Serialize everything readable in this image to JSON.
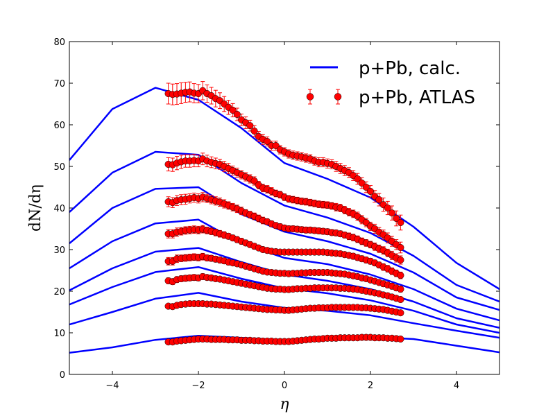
{
  "chart_data": {
    "type": "line",
    "xlabel": "η",
    "ylabel": "dN/dη",
    "xlim": [
      -5,
      5
    ],
    "ylim": [
      0,
      80
    ],
    "xticks": [
      -4,
      -2,
      0,
      2,
      4
    ],
    "xtick_labels": [
      "−4",
      "−2",
      "0",
      "2",
      "4"
    ],
    "yticks": [
      0,
      10,
      20,
      30,
      40,
      50,
      60,
      70,
      80
    ],
    "yticks_labels": [
      "0",
      "10",
      "20",
      "30",
      "40",
      "50",
      "60",
      "70",
      "80"
    ],
    "legend": {
      "position": "top-right",
      "entries": [
        {
          "label": "p+Pb, calc.",
          "kind": "line",
          "color": "#0000ff"
        },
        {
          "label": "p+Pb, ATLAS",
          "kind": "marker",
          "color": "#ff0000"
        }
      ]
    },
    "colors": {
      "line": "#0000ff",
      "marker_fill": "#ff0000",
      "errorbar": "#ff0000"
    },
    "calc_x": [
      -5,
      -4,
      -3,
      -2,
      -1,
      0,
      1,
      2,
      3,
      4,
      5
    ],
    "calc_series": [
      [
        51.5,
        63.8,
        68.9,
        66.0,
        59.2,
        50.8,
        47.0,
        42.5,
        35.5,
        26.8,
        20.5
      ],
      [
        39.0,
        48.5,
        53.5,
        52.8,
        46.0,
        40.6,
        37.7,
        34.0,
        28.5,
        21.5,
        17.5
      ],
      [
        31.5,
        40.0,
        44.6,
        45.0,
        38.5,
        34.3,
        32.0,
        29.0,
        24.5,
        18.5,
        15.5
      ],
      [
        25.5,
        32.0,
        36.3,
        37.2,
        31.5,
        28.0,
        26.5,
        24.0,
        20.5,
        15.8,
        13.0
      ],
      [
        20.2,
        25.5,
        29.5,
        30.4,
        27.0,
        24.0,
        22.5,
        20.5,
        17.5,
        13.5,
        11.2
      ],
      [
        16.8,
        21.0,
        24.6,
        25.8,
        23.0,
        20.7,
        19.5,
        17.8,
        15.3,
        12.0,
        10.0
      ],
      [
        12.0,
        15.0,
        18.2,
        19.6,
        17.5,
        16.0,
        15.3,
        14.2,
        12.3,
        10.5,
        8.8
      ],
      [
        5.2,
        6.5,
        8.3,
        9.3,
        8.8,
        8.2,
        8.6,
        9.0,
        8.5,
        6.9,
        5.3
      ]
    ],
    "data_x": [
      -2.7,
      -2.6,
      -2.5,
      -2.4,
      -2.3,
      -2.2,
      -2.1,
      -2.0,
      -1.9,
      -1.8,
      -1.7,
      -1.6,
      -1.5,
      -1.4,
      -1.3,
      -1.2,
      -1.1,
      -1.0,
      -0.9,
      -0.8,
      -0.7,
      -0.6,
      -0.5,
      -0.4,
      -0.3,
      -0.2,
      -0.1,
      0.0,
      0.1,
      0.2,
      0.3,
      0.4,
      0.5,
      0.6,
      0.7,
      0.8,
      0.9,
      1.0,
      1.1,
      1.2,
      1.3,
      1.4,
      1.5,
      1.6,
      1.7,
      1.8,
      1.9,
      2.0,
      2.1,
      2.2,
      2.3,
      2.4,
      2.5,
      2.6,
      2.7
    ],
    "data_series": [
      {
        "values": [
          67.5,
          67.3,
          67.4,
          67.6,
          67.8,
          67.9,
          67.6,
          67.5,
          68.2,
          67.5,
          67.0,
          66.3,
          65.8,
          65.0,
          64.2,
          63.5,
          62.5,
          61.2,
          60.5,
          59.8,
          58.5,
          57.2,
          56.5,
          56.0,
          55.0,
          55.0,
          54.0,
          53.5,
          53.0,
          52.7,
          52.5,
          52.3,
          52.0,
          51.8,
          51.3,
          51.0,
          51.0,
          50.7,
          50.5,
          50.0,
          49.5,
          49.0,
          48.5,
          47.8,
          47.0,
          46.0,
          45.0,
          44.0,
          42.8,
          42.0,
          40.8,
          40.0,
          38.8,
          37.5,
          36.5
        ],
        "errors": [
          2.5,
          2.5,
          2.5,
          2.5,
          2.4,
          2.4,
          2.3,
          2.2,
          2.2,
          2.1,
          2.0,
          2.0,
          1.9,
          1.8,
          1.7,
          1.6,
          1.5,
          1.4,
          1.4,
          1.3,
          1.3,
          1.2,
          1.2,
          1.1,
          1.1,
          1.1,
          1.0,
          1.0,
          1.0,
          1.0,
          1.0,
          1.0,
          1.0,
          1.0,
          1.0,
          1.1,
          1.1,
          1.1,
          1.1,
          1.2,
          1.2,
          1.2,
          1.2,
          1.2,
          1.3,
          1.3,
          1.3,
          1.4,
          1.4,
          1.5,
          1.6,
          1.6,
          1.7,
          1.8,
          1.8
        ]
      },
      {
        "values": [
          50.5,
          50.4,
          50.8,
          51.1,
          51.3,
          51.3,
          51.4,
          51.3,
          51.8,
          51.3,
          51.0,
          50.7,
          50.5,
          50.0,
          49.5,
          49.0,
          48.5,
          48.0,
          47.5,
          47.0,
          46.5,
          45.5,
          44.8,
          44.5,
          44.0,
          43.5,
          43.2,
          42.6,
          42.2,
          42.0,
          41.8,
          41.6,
          41.5,
          41.3,
          41.1,
          40.9,
          40.8,
          40.7,
          40.5,
          40.2,
          40.0,
          39.5,
          39.0,
          38.6,
          38.0,
          37.2,
          36.5,
          35.6,
          35.0,
          34.2,
          33.6,
          32.8,
          32.0,
          31.2,
          30.5
        ],
        "errors": [
          1.6,
          1.6,
          1.6,
          1.6,
          1.5,
          1.5,
          1.5,
          1.4,
          1.4,
          1.4,
          1.3,
          1.3,
          1.2,
          1.2,
          1.2,
          1.1,
          1.1,
          1.0,
          1.0,
          1.0,
          1.0,
          0.9,
          0.9,
          0.9,
          0.9,
          0.8,
          0.8,
          0.8,
          0.8,
          0.8,
          0.8,
          0.8,
          0.8,
          0.8,
          0.8,
          0.8,
          0.8,
          0.8,
          0.8,
          0.9,
          0.9,
          0.9,
          0.9,
          0.9,
          1.0,
          1.0,
          1.0,
          1.0,
          1.1,
          1.1,
          1.1,
          1.2,
          1.2,
          1.2,
          1.3
        ]
      },
      {
        "values": [
          41.5,
          41.3,
          41.8,
          42.0,
          42.1,
          42.3,
          42.5,
          42.3,
          42.6,
          42.3,
          42.0,
          41.7,
          41.4,
          41.0,
          40.6,
          40.2,
          39.8,
          39.3,
          38.8,
          38.4,
          38.0,
          37.5,
          37.0,
          36.7,
          36.2,
          35.8,
          35.5,
          35.2,
          35.0,
          35.0,
          34.9,
          34.8,
          34.7,
          34.7,
          34.6,
          34.5,
          34.4,
          34.3,
          34.1,
          34.0,
          33.8,
          33.5,
          33.2,
          32.9,
          32.5,
          32.0,
          31.6,
          31.2,
          30.7,
          30.2,
          29.8,
          29.2,
          28.6,
          28.0,
          27.5
        ],
        "errors": [
          1.2,
          1.2,
          1.2,
          1.2,
          1.2,
          1.1,
          1.1,
          1.1,
          1.1,
          1.0,
          1.0,
          1.0,
          1.0,
          1.0,
          0.9,
          0.9,
          0.9,
          0.9,
          0.8,
          0.8,
          0.8,
          0.8,
          0.8,
          0.7,
          0.7,
          0.7,
          0.7,
          0.7,
          0.7,
          0.7,
          0.7,
          0.7,
          0.7,
          0.7,
          0.7,
          0.7,
          0.7,
          0.7,
          0.7,
          0.7,
          0.7,
          0.7,
          0.8,
          0.8,
          0.8,
          0.8,
          0.8,
          0.8,
          0.9,
          0.9,
          0.9,
          0.9,
          1.0,
          1.0,
          1.0
        ]
      },
      {
        "values": [
          33.8,
          33.8,
          34.2,
          34.4,
          34.6,
          34.7,
          34.8,
          34.7,
          34.9,
          34.6,
          34.4,
          34.1,
          33.8,
          33.5,
          33.2,
          32.8,
          32.4,
          32.0,
          31.6,
          31.2,
          30.8,
          30.4,
          30.0,
          29.8,
          29.6,
          29.5,
          29.4,
          29.4,
          29.4,
          29.4,
          29.4,
          29.4,
          29.4,
          29.4,
          29.4,
          29.4,
          29.4,
          29.3,
          29.2,
          29.1,
          29.0,
          28.8,
          28.6,
          28.4,
          28.1,
          27.8,
          27.5,
          27.2,
          26.8,
          26.3,
          25.8,
          25.4,
          24.8,
          24.3,
          23.8
        ],
        "errors": [
          1.0,
          1.0,
          1.0,
          0.9,
          0.9,
          0.9,
          0.9,
          0.9,
          0.9,
          0.8,
          0.8,
          0.8,
          0.8,
          0.8,
          0.7,
          0.7,
          0.7,
          0.7,
          0.7,
          0.7,
          0.7,
          0.6,
          0.6,
          0.6,
          0.6,
          0.6,
          0.6,
          0.6,
          0.6,
          0.6,
          0.6,
          0.6,
          0.6,
          0.6,
          0.6,
          0.6,
          0.6,
          0.6,
          0.6,
          0.6,
          0.6,
          0.6,
          0.6,
          0.7,
          0.7,
          0.7,
          0.7,
          0.7,
          0.7,
          0.7,
          0.8,
          0.8,
          0.8,
          0.8,
          0.8
        ]
      },
      {
        "values": [
          27.2,
          27.2,
          27.8,
          27.9,
          28.0,
          28.1,
          28.2,
          28.1,
          28.3,
          28.0,
          27.9,
          27.7,
          27.5,
          27.3,
          27.0,
          26.8,
          26.6,
          26.3,
          26.0,
          25.7,
          25.4,
          25.1,
          24.8,
          24.6,
          24.5,
          24.4,
          24.3,
          24.3,
          24.2,
          24.3,
          24.3,
          24.4,
          24.4,
          24.5,
          24.5,
          24.5,
          24.5,
          24.5,
          24.4,
          24.3,
          24.2,
          24.1,
          23.9,
          23.7,
          23.5,
          23.2,
          23.0,
          22.7,
          22.4,
          22.1,
          21.8,
          21.5,
          21.2,
          20.8,
          20.5
        ],
        "errors": [
          0.9,
          0.9,
          0.9,
          0.8,
          0.8,
          0.8,
          0.8,
          0.8,
          0.8,
          0.7,
          0.7,
          0.7,
          0.7,
          0.7,
          0.7,
          0.6,
          0.6,
          0.6,
          0.6,
          0.6,
          0.6,
          0.6,
          0.5,
          0.5,
          0.5,
          0.5,
          0.5,
          0.5,
          0.5,
          0.5,
          0.5,
          0.5,
          0.5,
          0.5,
          0.5,
          0.5,
          0.5,
          0.5,
          0.5,
          0.5,
          0.5,
          0.5,
          0.6,
          0.6,
          0.6,
          0.6,
          0.6,
          0.6,
          0.6,
          0.6,
          0.7,
          0.7,
          0.7,
          0.7,
          0.7
        ]
      },
      {
        "values": [
          22.5,
          22.3,
          22.8,
          23.0,
          23.1,
          23.2,
          23.3,
          23.2,
          23.5,
          23.3,
          23.2,
          23.0,
          22.9,
          22.7,
          22.5,
          22.3,
          22.1,
          21.9,
          21.7,
          21.5,
          21.3,
          21.1,
          20.9,
          20.7,
          20.6,
          20.5,
          20.5,
          20.4,
          20.4,
          20.5,
          20.6,
          20.6,
          20.7,
          20.7,
          20.8,
          20.8,
          20.8,
          20.8,
          20.8,
          20.8,
          20.7,
          20.7,
          20.6,
          20.5,
          20.4,
          20.2,
          20.0,
          19.8,
          19.6,
          19.4,
          19.1,
          18.9,
          18.6,
          18.3,
          18.0
        ],
        "errors": [
          0.7,
          0.7,
          0.7,
          0.7,
          0.7,
          0.7,
          0.7,
          0.7,
          0.7,
          0.6,
          0.6,
          0.6,
          0.6,
          0.6,
          0.6,
          0.6,
          0.5,
          0.5,
          0.5,
          0.5,
          0.5,
          0.5,
          0.5,
          0.5,
          0.5,
          0.5,
          0.5,
          0.5,
          0.5,
          0.5,
          0.5,
          0.5,
          0.5,
          0.5,
          0.5,
          0.5,
          0.5,
          0.5,
          0.5,
          0.5,
          0.5,
          0.5,
          0.5,
          0.5,
          0.5,
          0.5,
          0.5,
          0.5,
          0.5,
          0.5,
          0.6,
          0.6,
          0.6,
          0.6,
          0.6
        ]
      },
      {
        "values": [
          16.4,
          16.3,
          16.6,
          16.8,
          16.9,
          17.0,
          17.0,
          17.0,
          17.0,
          16.9,
          16.9,
          16.8,
          16.7,
          16.6,
          16.5,
          16.4,
          16.3,
          16.2,
          16.1,
          16.0,
          15.9,
          15.8,
          15.7,
          15.6,
          15.6,
          15.5,
          15.5,
          15.4,
          15.4,
          15.5,
          15.6,
          15.7,
          15.8,
          15.9,
          15.9,
          16.0,
          16.0,
          16.0,
          16.1,
          16.1,
          16.1,
          16.1,
          16.1,
          16.1,
          16.1,
          16.0,
          16.0,
          15.9,
          15.8,
          15.7,
          15.6,
          15.4,
          15.2,
          15.0,
          14.8
        ],
        "errors": [
          0.5,
          0.5,
          0.5,
          0.5,
          0.5,
          0.5,
          0.5,
          0.5,
          0.5,
          0.5,
          0.5,
          0.5,
          0.5,
          0.5,
          0.4,
          0.4,
          0.4,
          0.4,
          0.4,
          0.4,
          0.4,
          0.4,
          0.4,
          0.4,
          0.4,
          0.4,
          0.4,
          0.4,
          0.4,
          0.4,
          0.4,
          0.4,
          0.4,
          0.4,
          0.4,
          0.4,
          0.4,
          0.4,
          0.4,
          0.4,
          0.4,
          0.4,
          0.4,
          0.4,
          0.4,
          0.4,
          0.4,
          0.4,
          0.4,
          0.4,
          0.4,
          0.4,
          0.4,
          0.5,
          0.5
        ]
      },
      {
        "values": [
          7.8,
          7.8,
          8.0,
          8.1,
          8.2,
          8.3,
          8.4,
          8.5,
          8.5,
          8.5,
          8.4,
          8.4,
          8.4,
          8.4,
          8.3,
          8.3,
          8.3,
          8.2,
          8.2,
          8.2,
          8.1,
          8.1,
          8.0,
          8.0,
          8.0,
          7.9,
          7.9,
          7.9,
          7.9,
          8.0,
          8.1,
          8.2,
          8.3,
          8.4,
          8.5,
          8.5,
          8.6,
          8.7,
          8.7,
          8.7,
          8.8,
          8.8,
          8.8,
          8.8,
          8.8,
          8.9,
          8.9,
          8.9,
          8.8,
          8.8,
          8.8,
          8.7,
          8.7,
          8.6,
          8.5
        ],
        "errors": [
          0.3,
          0.3,
          0.3,
          0.3,
          0.3,
          0.3,
          0.3,
          0.3,
          0.3,
          0.3,
          0.3,
          0.3,
          0.3,
          0.3,
          0.3,
          0.3,
          0.3,
          0.3,
          0.3,
          0.3,
          0.3,
          0.3,
          0.3,
          0.3,
          0.3,
          0.3,
          0.3,
          0.3,
          0.3,
          0.3,
          0.3,
          0.3,
          0.3,
          0.3,
          0.3,
          0.3,
          0.3,
          0.3,
          0.3,
          0.3,
          0.3,
          0.3,
          0.3,
          0.3,
          0.3,
          0.3,
          0.3,
          0.3,
          0.3,
          0.3,
          0.3,
          0.3,
          0.3,
          0.3,
          0.3
        ]
      }
    ]
  }
}
